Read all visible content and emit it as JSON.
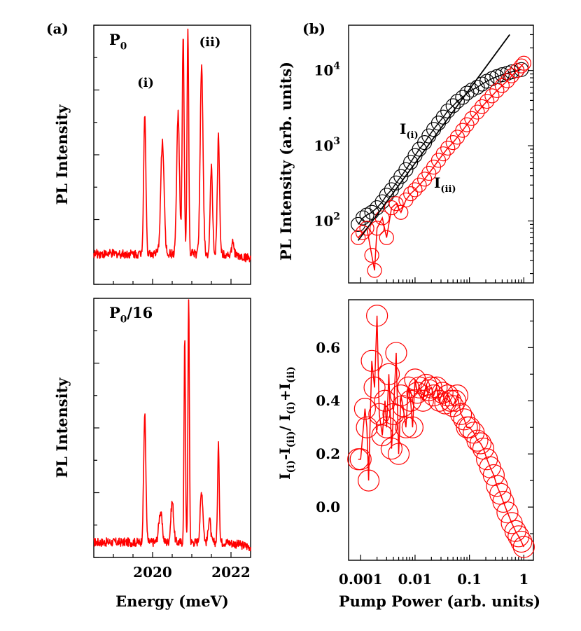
{
  "colors": {
    "red": "#ff0000",
    "black": "#000000"
  },
  "chart_data": [
    {
      "panel": "(a)",
      "type": "line",
      "title": "P0",
      "title_sub": "0",
      "title_suffix": "",
      "ylabel": "PL Intensity",
      "xlabel": "",
      "xlim": [
        2018.5,
        2022.5
      ],
      "x_ticks": [
        2019,
        2019.5,
        2020,
        2020.5,
        2021,
        2021.5,
        2022
      ],
      "annotations": [
        "(i)",
        "(ii)"
      ],
      "peaks": [
        {
          "x": 2019.8,
          "h": 0.55,
          "w": 0.04
        },
        {
          "x": 2020.25,
          "h": 0.44,
          "w": 0.06
        },
        {
          "x": 2020.65,
          "h": 0.55,
          "w": 0.05
        },
        {
          "x": 2020.78,
          "h": 0.85,
          "w": 0.035
        },
        {
          "x": 2020.9,
          "h": 0.88,
          "w": 0.03
        },
        {
          "x": 2021.25,
          "h": 0.74,
          "w": 0.05
        },
        {
          "x": 2021.5,
          "h": 0.35,
          "w": 0.04
        },
        {
          "x": 2021.68,
          "h": 0.46,
          "w": 0.04
        },
        {
          "x": 2022.05,
          "h": 0.05,
          "w": 0.04
        }
      ],
      "baseline": 0.12
    },
    {
      "panel": "",
      "type": "line",
      "title": "P0",
      "title_sub": "0",
      "title_suffix": "/16",
      "ylabel": "PL Intensity",
      "xlabel": "Energy (meV)",
      "xlim": [
        2018.5,
        2022.5
      ],
      "x_ticks": [
        2019,
        2019.5,
        2020,
        2020.5,
        2021,
        2021.5,
        2022
      ],
      "x_tick_labels": [
        "2020",
        "2022"
      ],
      "peaks": [
        {
          "x": 2019.8,
          "h": 0.5,
          "w": 0.04
        },
        {
          "x": 2020.2,
          "h": 0.12,
          "w": 0.06
        },
        {
          "x": 2020.5,
          "h": 0.16,
          "w": 0.05
        },
        {
          "x": 2020.82,
          "h": 0.82,
          "w": 0.025
        },
        {
          "x": 2020.92,
          "h": 0.98,
          "w": 0.025
        },
        {
          "x": 2021.25,
          "h": 0.2,
          "w": 0.05
        },
        {
          "x": 2021.45,
          "h": 0.1,
          "w": 0.04
        },
        {
          "x": 2021.68,
          "h": 0.38,
          "w": 0.03
        }
      ],
      "baseline": 0.06
    },
    {
      "panel": "(b)",
      "type": "scatter",
      "ylabel": "PL Intensity (arb. units)",
      "yscale": "log",
      "xlim": [
        0.0006,
        1.5
      ],
      "ylim": [
        15,
        40000
      ],
      "y_tick_labels": [
        {
          "base": "10",
          "exp": "2",
          "value": 100
        },
        {
          "base": "10",
          "exp": "3",
          "value": 1000
        },
        {
          "base": "10",
          "exp": "4",
          "value": 10000
        }
      ],
      "series": [
        {
          "name": "I(i)",
          "label_main": "I",
          "label_sub": "(i)",
          "color": "#000000",
          "x": [
            0.0009,
            0.0011,
            0.0013,
            0.0016,
            0.002,
            0.0025,
            0.003,
            0.0037,
            0.0045,
            0.0055,
            0.0068,
            0.0083,
            0.01,
            0.012,
            0.015,
            0.018,
            0.022,
            0.027,
            0.033,
            0.04,
            0.05,
            0.06,
            0.075,
            0.09,
            0.11,
            0.14,
            0.17,
            0.21,
            0.26,
            0.32,
            0.4,
            0.5,
            0.6,
            0.75,
            0.9
          ],
          "y": [
            90,
            110,
            120,
            130,
            150,
            180,
            220,
            260,
            320,
            390,
            480,
            600,
            740,
            900,
            1100,
            1350,
            1650,
            2000,
            2400,
            2900,
            3400,
            3900,
            4400,
            5000,
            5500,
            6000,
            6600,
            7200,
            7800,
            8300,
            8800,
            9200,
            9600,
            10000,
            10300
          ]
        },
        {
          "name": "I(ii)",
          "label_main": "I",
          "label_sub": "(ii)",
          "color": "#ff0000",
          "x": [
            0.0009,
            0.0011,
            0.0013,
            0.0016,
            0.0018,
            0.002,
            0.0025,
            0.003,
            0.0037,
            0.0045,
            0.0055,
            0.0068,
            0.0083,
            0.01,
            0.012,
            0.015,
            0.018,
            0.022,
            0.027,
            0.033,
            0.04,
            0.05,
            0.06,
            0.075,
            0.09,
            0.11,
            0.14,
            0.17,
            0.21,
            0.26,
            0.32,
            0.4,
            0.5,
            0.6,
            0.75,
            0.9,
            1.0
          ],
          "y": [
            60,
            70,
            80,
            35,
            22,
            80,
            110,
            60,
            150,
            170,
            130,
            190,
            230,
            260,
            300,
            360,
            430,
            520,
            640,
            780,
            930,
            1100,
            1300,
            1600,
            1900,
            2300,
            2800,
            3300,
            3900,
            4600,
            5400,
            6300,
            7300,
            8500,
            10000,
            11500,
            12500
          ]
        },
        {
          "name": "fit",
          "color": "#000000",
          "style": "line",
          "x": [
            0.0009,
            0.55
          ],
          "y": [
            55,
            30000
          ]
        }
      ]
    },
    {
      "panel": "",
      "type": "scatter",
      "ylabel": "I(i)-I(ii)/ I(i)+I(ii)",
      "xlabel": "Pump Power (arb. units)",
      "xscale": "log",
      "xlim": [
        0.0006,
        1.5
      ],
      "ylim": [
        -0.2,
        0.78
      ],
      "y_tick_labels": [
        "0.0",
        "0.2",
        "0.4",
        "0.6"
      ],
      "x_tick_labels": [
        "0.001",
        "0.01",
        "0.1",
        "1"
      ],
      "series": [
        {
          "name": "ratio",
          "color": "#ff0000",
          "x": [
            0.0009,
            0.001,
            0.0012,
            0.0013,
            0.0014,
            0.0016,
            0.0018,
            0.002,
            0.0022,
            0.0025,
            0.0028,
            0.003,
            0.0033,
            0.0037,
            0.004,
            0.0045,
            0.005,
            0.0055,
            0.006,
            0.0068,
            0.0075,
            0.0083,
            0.009,
            0.01,
            0.011,
            0.012,
            0.014,
            0.016,
            0.018,
            0.02,
            0.022,
            0.025,
            0.028,
            0.032,
            0.036,
            0.04,
            0.045,
            0.05,
            0.055,
            0.06,
            0.07,
            0.08,
            0.09,
            0.1,
            0.12,
            0.14,
            0.16,
            0.18,
            0.21,
            0.24,
            0.28,
            0.32,
            0.37,
            0.42,
            0.5,
            0.6,
            0.7,
            0.8,
            0.9,
            1.0
          ],
          "y": [
            0.18,
            0.18,
            0.37,
            0.3,
            0.1,
            0.55,
            0.45,
            0.72,
            0.35,
            0.27,
            0.4,
            0.3,
            0.5,
            0.22,
            0.35,
            0.58,
            0.2,
            0.42,
            0.38,
            0.3,
            0.45,
            0.4,
            0.3,
            0.48,
            0.43,
            0.45,
            0.4,
            0.46,
            0.44,
            0.45,
            0.42,
            0.45,
            0.4,
            0.43,
            0.39,
            0.42,
            0.4,
            0.38,
            0.4,
            0.42,
            0.35,
            0.33,
            0.3,
            0.3,
            0.28,
            0.25,
            0.24,
            0.22,
            0.18,
            0.15,
            0.12,
            0.08,
            0.05,
            0.02,
            -0.02,
            -0.06,
            -0.09,
            -0.11,
            -0.13,
            -0.15
          ]
        }
      ]
    }
  ]
}
